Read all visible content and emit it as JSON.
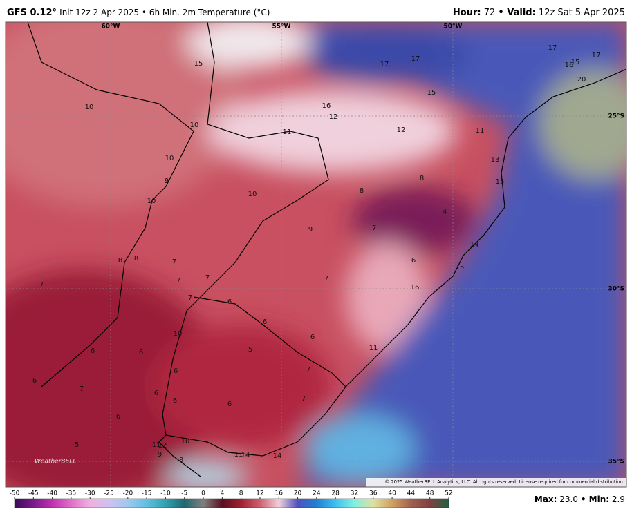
{
  "header": {
    "model": "GFS 0.12°",
    "description": "Init 12z 2 Apr 2025 • 6h Min. 2m Temperature (°C)",
    "hour_label": "Hour:",
    "hour": "72",
    "valid_label": "• Valid:",
    "valid": "12z Sat 5 Apr 2025"
  },
  "map": {
    "lon_labels": [
      "60°W",
      "55°W",
      "50°W"
    ],
    "lat_labels": [
      "25°S",
      "30°S",
      "35°S"
    ],
    "labels": [
      15,
      17,
      17,
      17,
      16,
      15,
      17,
      20,
      15,
      16,
      12,
      10,
      10,
      11,
      12,
      11,
      10,
      13,
      9,
      15,
      10,
      10,
      8,
      8,
      4,
      9,
      7,
      14,
      8,
      8,
      7,
      7,
      7,
      6,
      15,
      7,
      7,
      16,
      6,
      7,
      6,
      6,
      10,
      5,
      6,
      6,
      11,
      6,
      6,
      7,
      7,
      6,
      6,
      6,
      7,
      6,
      5,
      10,
      11,
      12,
      9,
      8,
      11,
      14,
      14
    ],
    "copyright": "© 2025 WeatherBELL Analytics, LLC. All rights reserved. License required for commercial distribution.",
    "logo": "WeatherBELL"
  },
  "colorbar": {
    "ticks": [
      -50,
      -45,
      -40,
      -35,
      -30,
      -25,
      -20,
      -15,
      -10,
      -5,
      0,
      4,
      8,
      12,
      16,
      20,
      24,
      28,
      32,
      36,
      40,
      44,
      48,
      52
    ],
    "colors": [
      "#3a0a5a",
      "#7a1a8a",
      "#c030b0",
      "#e070c8",
      "#f0b0e0",
      "#d0c0f0",
      "#a0c8f0",
      "#60c0e0",
      "#30a0b0",
      "#206870",
      "#808080",
      "#5a1020",
      "#a02030",
      "#d06070",
      "#f0d0d8",
      "#5050c0",
      "#2080d0",
      "#40c0f0",
      "#80f0e0",
      "#e0e0a0",
      "#d0a060",
      "#a06050",
      "#804040",
      "#206040"
    ]
  },
  "footer": {
    "max_label": "Max:",
    "max": "23.0",
    "min_label": "• Min:",
    "min": "2.9"
  }
}
